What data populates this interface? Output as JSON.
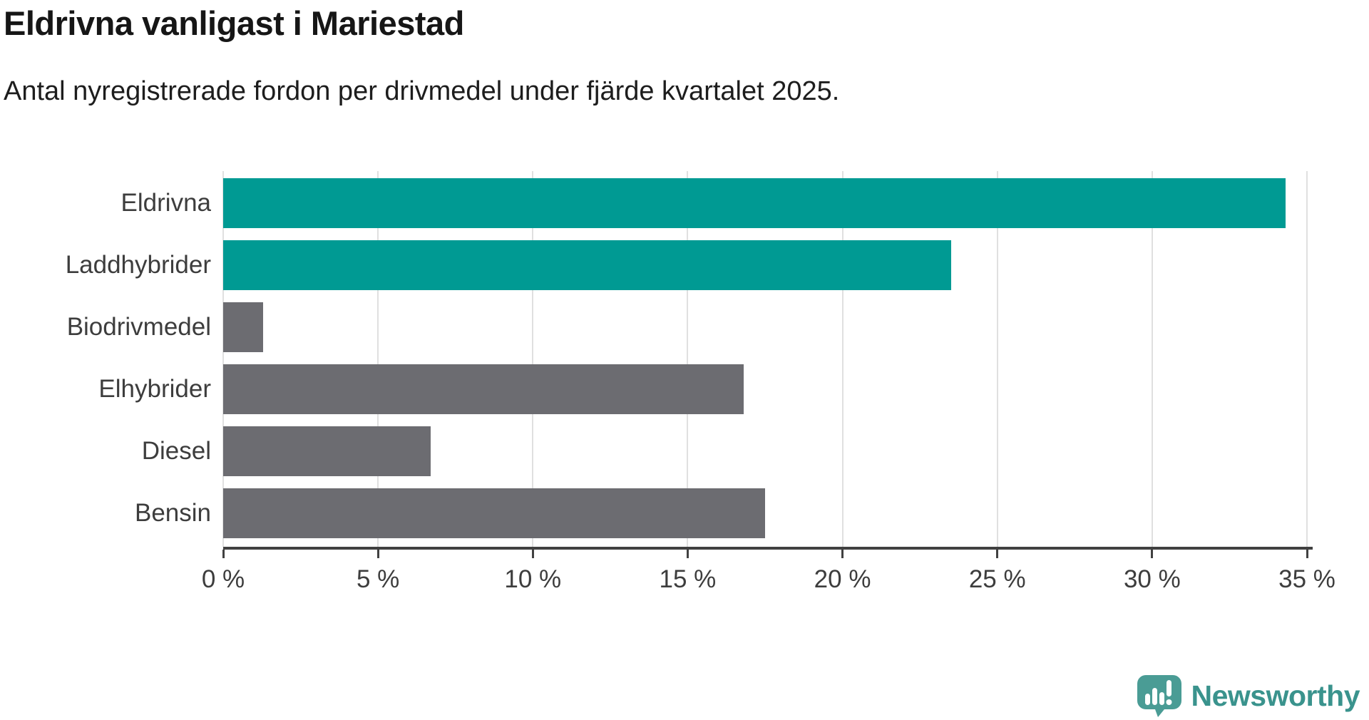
{
  "title": "Eldrivna vanligast i Mariestad",
  "subtitle": "Antal nyregistrerade fordon per drivmedel under fjärde kvartalet 2025.",
  "chart_data": {
    "type": "bar",
    "orientation": "horizontal",
    "title": "Eldrivna vanligast i Mariestad",
    "subtitle": "Antal nyregistrerade fordon per drivmedel under fjärde kvartalet 2025.",
    "categories": [
      "Eldrivna",
      "Laddhybrider",
      "Biodrivmedel",
      "Elhybrider",
      "Diesel",
      "Bensin"
    ],
    "values": [
      34.3,
      23.5,
      1.3,
      16.8,
      6.7,
      17.5
    ],
    "unit": "%",
    "xlim": [
      0,
      35
    ],
    "x_ticks": [
      0,
      5,
      10,
      15,
      20,
      25,
      30,
      35
    ],
    "x_tick_labels": [
      "0 %",
      "5 %",
      "10 %",
      "15 %",
      "20 %",
      "25 %",
      "30 %",
      "35 %"
    ],
    "bar_colors": [
      "#009a93",
      "#009a93",
      "#6c6c71",
      "#6c6c71",
      "#6c6c71",
      "#6c6c71"
    ],
    "highlight_color": "#009a93",
    "default_color": "#6c6c71",
    "grid": true,
    "gridline_color": "#e0e0e0",
    "axis_color": "#414141",
    "legend": "none"
  },
  "branding": {
    "logo_text": "Newsworthy",
    "logo_text_color": "#3a938d",
    "logo_icon": "newsworthy-speech-bubble-chart-icon",
    "logo_icon_color": "#4a9c95"
  }
}
